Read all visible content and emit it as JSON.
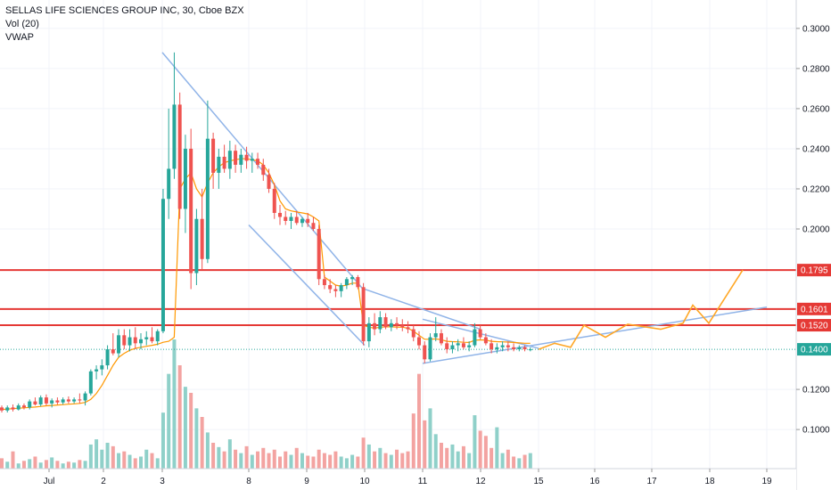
{
  "legend": {
    "symbol": "SELLAS LIFE SCIENCES GROUP INC, 30, Cboe BZX",
    "vol": "Vol (20)",
    "vwap": "VWAP"
  },
  "colors": {
    "up": "#26a69a",
    "down": "#ef5350",
    "vol_up": "#8fd0c9",
    "vol_down": "#f3a3a1",
    "vwap": "#ff9800",
    "level_line": "#e53935",
    "trendline": "#90b4e8",
    "projection": "#ffa726",
    "current_price": "#26a69a",
    "grid": "#f0f3fa"
  },
  "chart_data": {
    "type": "candlestick",
    "title": "SELLAS LIFE SCIENCES GROUP INC, 30, Cboe BZX",
    "interval": "30",
    "exchange": "Cboe BZX",
    "x_ticks": [
      "Jul",
      "2",
      "3",
      "8",
      "9",
      "10",
      "11",
      "12",
      "15",
      "16",
      "17",
      "18",
      "19"
    ],
    "y_ticks": [
      "0.3000",
      "0.2800",
      "0.2600",
      "0.2400",
      "0.2200",
      "0.2000",
      "0.1200",
      "0.1000"
    ],
    "ylim": [
      0.0885,
      0.3075
    ],
    "horizontal_levels": [
      {
        "label": "0.1795",
        "value": 0.1795
      },
      {
        "label": "0.1601",
        "value": 0.1601
      },
      {
        "label": "0.1520",
        "value": 0.152
      }
    ],
    "current_price": {
      "label": "0.1400",
      "value": 0.14
    },
    "candles": [
      [
        0.111,
        0.112,
        0.1085,
        0.1095
      ],
      [
        0.1095,
        0.112,
        0.1085,
        0.111
      ],
      [
        0.111,
        0.1125,
        0.109,
        0.11
      ],
      [
        0.11,
        0.113,
        0.1095,
        0.112
      ],
      [
        0.112,
        0.113,
        0.11,
        0.111
      ],
      [
        0.111,
        0.115,
        0.11,
        0.114
      ],
      [
        0.114,
        0.116,
        0.112,
        0.1125
      ],
      [
        0.1125,
        0.117,
        0.1115,
        0.116
      ],
      [
        0.116,
        0.1175,
        0.112,
        0.113
      ],
      [
        0.113,
        0.1155,
        0.111,
        0.1145
      ],
      [
        0.1145,
        0.116,
        0.1125,
        0.1135
      ],
      [
        0.1135,
        0.116,
        0.1125,
        0.115
      ],
      [
        0.115,
        0.1165,
        0.113,
        0.114
      ],
      [
        0.114,
        0.116,
        0.113,
        0.115
      ],
      [
        0.115,
        0.118,
        0.113,
        0.1145
      ],
      [
        0.1145,
        0.119,
        0.112,
        0.118
      ],
      [
        0.118,
        0.13,
        0.117,
        0.129
      ],
      [
        0.129,
        0.132,
        0.125,
        0.13
      ],
      [
        0.13,
        0.135,
        0.127,
        0.132
      ],
      [
        0.132,
        0.142,
        0.13,
        0.14
      ],
      [
        0.14,
        0.148,
        0.137,
        0.138
      ],
      [
        0.138,
        0.15,
        0.136,
        0.147
      ],
      [
        0.147,
        0.15,
        0.14,
        0.142
      ],
      [
        0.142,
        0.15,
        0.139,
        0.146
      ],
      [
        0.146,
        0.151,
        0.14,
        0.143
      ],
      [
        0.143,
        0.148,
        0.14,
        0.145
      ],
      [
        0.145,
        0.149,
        0.142,
        0.146
      ],
      [
        0.146,
        0.151,
        0.143,
        0.144
      ],
      [
        0.144,
        0.15,
        0.142,
        0.149
      ],
      [
        0.149,
        0.22,
        0.148,
        0.215
      ],
      [
        0.215,
        0.26,
        0.205,
        0.23
      ],
      [
        0.23,
        0.288,
        0.225,
        0.262
      ],
      [
        0.262,
        0.268,
        0.205,
        0.21
      ],
      [
        0.21,
        0.247,
        0.198,
        0.24
      ],
      [
        0.24,
        0.25,
        0.17,
        0.178
      ],
      [
        0.178,
        0.21,
        0.172,
        0.205
      ],
      [
        0.205,
        0.22,
        0.18,
        0.185
      ],
      [
        0.185,
        0.264,
        0.183,
        0.245
      ],
      [
        0.245,
        0.248,
        0.22,
        0.228
      ],
      [
        0.228,
        0.24,
        0.22,
        0.236
      ],
      [
        0.236,
        0.242,
        0.228,
        0.23
      ],
      [
        0.23,
        0.244,
        0.225,
        0.239
      ],
      [
        0.239,
        0.242,
        0.228,
        0.232
      ],
      [
        0.232,
        0.24,
        0.228,
        0.237
      ],
      [
        0.237,
        0.241,
        0.23,
        0.234
      ],
      [
        0.234,
        0.238,
        0.228,
        0.235
      ],
      [
        0.235,
        0.238,
        0.23,
        0.232
      ],
      [
        0.232,
        0.235,
        0.224,
        0.227
      ],
      [
        0.227,
        0.23,
        0.218,
        0.22
      ],
      [
        0.22,
        0.223,
        0.205,
        0.208
      ],
      [
        0.208,
        0.212,
        0.202,
        0.206
      ],
      [
        0.206,
        0.209,
        0.202,
        0.204
      ],
      [
        0.204,
        0.208,
        0.2,
        0.206
      ],
      [
        0.206,
        0.209,
        0.202,
        0.203
      ],
      [
        0.203,
        0.206,
        0.201,
        0.205
      ],
      [
        0.205,
        0.208,
        0.201,
        0.203
      ],
      [
        0.203,
        0.206,
        0.199,
        0.2
      ],
      [
        0.2,
        0.202,
        0.172,
        0.175
      ],
      [
        0.175,
        0.177,
        0.17,
        0.172
      ],
      [
        0.172,
        0.175,
        0.168,
        0.17
      ],
      [
        0.17,
        0.172,
        0.166,
        0.169
      ],
      [
        0.169,
        0.173,
        0.166,
        0.172
      ],
      [
        0.172,
        0.176,
        0.17,
        0.175
      ],
      [
        0.175,
        0.177,
        0.172,
        0.176
      ],
      [
        0.176,
        0.177,
        0.17,
        0.171
      ],
      [
        0.171,
        0.173,
        0.142,
        0.144
      ],
      [
        0.144,
        0.156,
        0.141,
        0.153
      ],
      [
        0.153,
        0.158,
        0.147,
        0.15
      ],
      [
        0.15,
        0.159,
        0.148,
        0.156
      ],
      [
        0.156,
        0.158,
        0.15,
        0.151
      ],
      [
        0.151,
        0.155,
        0.149,
        0.153
      ],
      [
        0.153,
        0.156,
        0.15,
        0.152
      ],
      [
        0.152,
        0.155,
        0.149,
        0.151
      ],
      [
        0.151,
        0.154,
        0.148,
        0.15
      ],
      [
        0.15,
        0.152,
        0.144,
        0.146
      ],
      [
        0.146,
        0.149,
        0.14,
        0.142
      ],
      [
        0.142,
        0.144,
        0.133,
        0.135
      ],
      [
        0.135,
        0.148,
        0.134,
        0.146
      ],
      [
        0.146,
        0.156,
        0.144,
        0.148
      ],
      [
        0.148,
        0.15,
        0.142,
        0.143
      ],
      [
        0.143,
        0.146,
        0.138,
        0.14
      ],
      [
        0.14,
        0.144,
        0.138,
        0.142
      ],
      [
        0.142,
        0.145,
        0.139,
        0.143
      ],
      [
        0.143,
        0.146,
        0.14,
        0.141
      ],
      [
        0.141,
        0.144,
        0.139,
        0.142
      ],
      [
        0.142,
        0.153,
        0.141,
        0.15
      ],
      [
        0.15,
        0.152,
        0.145,
        0.146
      ],
      [
        0.146,
        0.148,
        0.142,
        0.143
      ],
      [
        0.143,
        0.145,
        0.138,
        0.14
      ],
      [
        0.14,
        0.143,
        0.138,
        0.141
      ],
      [
        0.141,
        0.144,
        0.139,
        0.142
      ],
      [
        0.142,
        0.144,
        0.139,
        0.141
      ],
      [
        0.141,
        0.143,
        0.139,
        0.14
      ],
      [
        0.14,
        0.142,
        0.139,
        0.141
      ],
      [
        0.141,
        0.142,
        0.139,
        0.14
      ],
      [
        0.14,
        0.141,
        0.139,
        0.14
      ]
    ],
    "volume": [
      12,
      8,
      20,
      6,
      9,
      11,
      14,
      7,
      10,
      13,
      9,
      6,
      8,
      7,
      10,
      9,
      28,
      34,
      22,
      30,
      26,
      18,
      20,
      16,
      12,
      14,
      22,
      18,
      12,
      65,
      110,
      150,
      120,
      95,
      88,
      70,
      60,
      42,
      30,
      25,
      20,
      34,
      22,
      18,
      26,
      16,
      20,
      24,
      18,
      22,
      14,
      20,
      16,
      24,
      18,
      15,
      14,
      22,
      18,
      16,
      20,
      14,
      12,
      16,
      14,
      36,
      28,
      20,
      24,
      18,
      16,
      22,
      18,
      20,
      64,
      110,
      56,
      70,
      40,
      30,
      24,
      28,
      20,
      26,
      18,
      62,
      44,
      38,
      24,
      48,
      18,
      22,
      14,
      12,
      16,
      18
    ],
    "vwap": [
      0.11,
      0.1102,
      0.1104,
      0.1106,
      0.1108,
      0.111,
      0.1112,
      0.1115,
      0.1118,
      0.112,
      0.1122,
      0.1124,
      0.1126,
      0.1128,
      0.113,
      0.1135,
      0.115,
      0.118,
      0.122,
      0.127,
      0.132,
      0.136,
      0.138,
      0.1395,
      0.1405,
      0.141,
      0.1415,
      0.142,
      0.1425,
      0.1435,
      0.144,
      0.146,
      0.22,
      0.225,
      0.228,
      0.22,
      0.216,
      0.223,
      0.228,
      0.231,
      0.233,
      0.234,
      0.2345,
      0.235,
      0.235,
      0.2345,
      0.234,
      0.232,
      0.228,
      0.222,
      0.214,
      0.21,
      0.209,
      0.2085,
      0.208,
      0.2075,
      0.206,
      0.204,
      0.176,
      0.174,
      0.172,
      0.1715,
      0.172,
      0.173,
      0.173,
      0.152,
      0.151,
      0.1505,
      0.151,
      0.1512,
      0.1512,
      0.1511,
      0.151,
      0.1505,
      0.149,
      0.147,
      0.145,
      0.145,
      0.1452,
      0.1448,
      0.144,
      0.1438,
      0.1437,
      0.1435,
      0.1434,
      0.1445,
      0.1447,
      0.1446,
      0.144,
      0.1438,
      0.1437,
      0.1436,
      0.1434,
      0.1432,
      0.143,
      0.143
    ],
    "trendlines": [
      {
        "from": [
          "Jul 3",
          0.288
        ],
        "to": [
          "Jul 10",
          0.169
        ]
      },
      {
        "from": [
          "Jul 8",
          0.202
        ],
        "to": [
          "Jul 10",
          0.142
        ]
      },
      {
        "from": [
          "Jul 10",
          0.17
        ],
        "to": [
          "Jul 12",
          0.15
        ]
      },
      {
        "from": [
          "Jul 11",
          0.133
        ],
        "to": [
          "Jul 19",
          0.161
        ]
      },
      {
        "from": [
          "Jul 11",
          0.155
        ],
        "to": [
          "Jul 15",
          0.1405
        ]
      }
    ],
    "projection_path": [
      [
        "Jul 15",
        0.14
      ],
      [
        "Jul 15",
        0.143
      ],
      [
        "Jul 16",
        0.141
      ],
      [
        "Jul 16",
        0.152
      ],
      [
        "Jul 16",
        0.146
      ],
      [
        "Jul 17",
        0.1525
      ],
      [
        "Jul 17",
        0.15
      ],
      [
        "Jul 18",
        0.153
      ],
      [
        "Jul 18",
        0.162
      ],
      [
        "Jul 18",
        0.153
      ],
      [
        "Jul 19",
        0.1795
      ]
    ]
  }
}
